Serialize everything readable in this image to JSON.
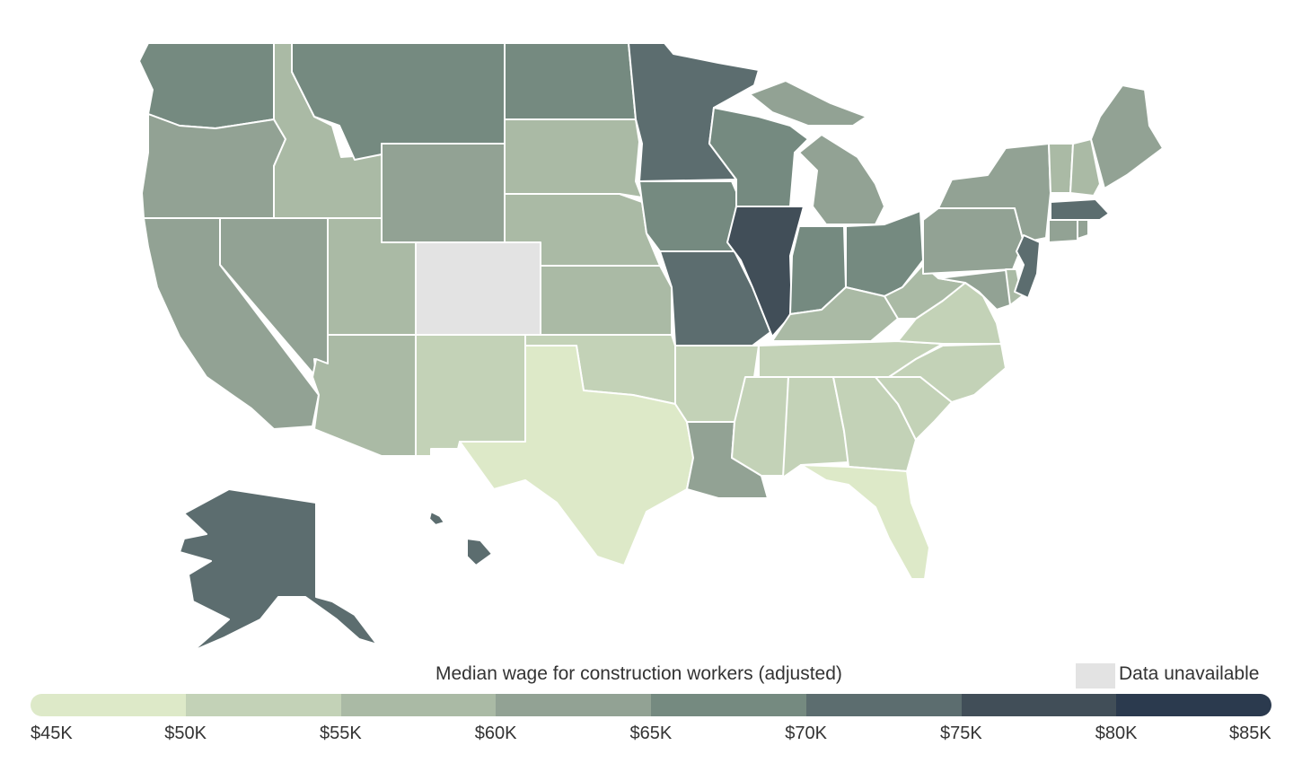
{
  "legend": {
    "title": "Median wage for construction workers (adjusted)",
    "unavailable_label": "Data unavailable",
    "tick_labels": [
      "$45K",
      "$50K",
      "$55K",
      "$60K",
      "$65K",
      "$70K",
      "$75K",
      "$80K",
      "$85K"
    ],
    "bin_colors": [
      "#dde9c8",
      "#c3d2b7",
      "#aabaa5",
      "#92a294",
      "#758a80",
      "#5c6d6f",
      "#414e58",
      "#2b3a4e"
    ],
    "unavailable_color": "#e3e3e3"
  },
  "states": [
    {
      "id": "WA",
      "bin": 4
    },
    {
      "id": "OR",
      "bin": 3
    },
    {
      "id": "CA",
      "bin": 3
    },
    {
      "id": "NV",
      "bin": 3
    },
    {
      "id": "ID",
      "bin": 2
    },
    {
      "id": "MT",
      "bin": 4
    },
    {
      "id": "WY",
      "bin": 3
    },
    {
      "id": "UT",
      "bin": 2
    },
    {
      "id": "AZ",
      "bin": 2
    },
    {
      "id": "CO",
      "bin": null
    },
    {
      "id": "NM",
      "bin": 1
    },
    {
      "id": "ND",
      "bin": 4
    },
    {
      "id": "SD",
      "bin": 2
    },
    {
      "id": "NE",
      "bin": 2
    },
    {
      "id": "KS",
      "bin": 2
    },
    {
      "id": "OK",
      "bin": 1
    },
    {
      "id": "TX",
      "bin": 0
    },
    {
      "id": "MN",
      "bin": 5
    },
    {
      "id": "IA",
      "bin": 4
    },
    {
      "id": "MO",
      "bin": 5
    },
    {
      "id": "AR",
      "bin": 1
    },
    {
      "id": "LA",
      "bin": 3
    },
    {
      "id": "WI",
      "bin": 4
    },
    {
      "id": "IL",
      "bin": 6
    },
    {
      "id": "MI",
      "bin": 3
    },
    {
      "id": "IN",
      "bin": 4
    },
    {
      "id": "OH",
      "bin": 4
    },
    {
      "id": "KY",
      "bin": 2
    },
    {
      "id": "TN",
      "bin": 1
    },
    {
      "id": "MS",
      "bin": 1
    },
    {
      "id": "AL",
      "bin": 1
    },
    {
      "id": "GA",
      "bin": 1
    },
    {
      "id": "FL",
      "bin": 0
    },
    {
      "id": "SC",
      "bin": 1
    },
    {
      "id": "NC",
      "bin": 1
    },
    {
      "id": "VA",
      "bin": 1
    },
    {
      "id": "WV",
      "bin": 2
    },
    {
      "id": "PA",
      "bin": 3
    },
    {
      "id": "NY",
      "bin": 3
    },
    {
      "id": "VT",
      "bin": 2
    },
    {
      "id": "NH",
      "bin": 2
    },
    {
      "id": "ME",
      "bin": 3
    },
    {
      "id": "MA",
      "bin": 5
    },
    {
      "id": "RI",
      "bin": 3
    },
    {
      "id": "CT",
      "bin": 3
    },
    {
      "id": "NJ",
      "bin": 5
    },
    {
      "id": "DE",
      "bin": 2
    },
    {
      "id": "MD",
      "bin": 3
    },
    {
      "id": "AK",
      "bin": 5
    },
    {
      "id": "HI",
      "bin": 5
    }
  ]
}
